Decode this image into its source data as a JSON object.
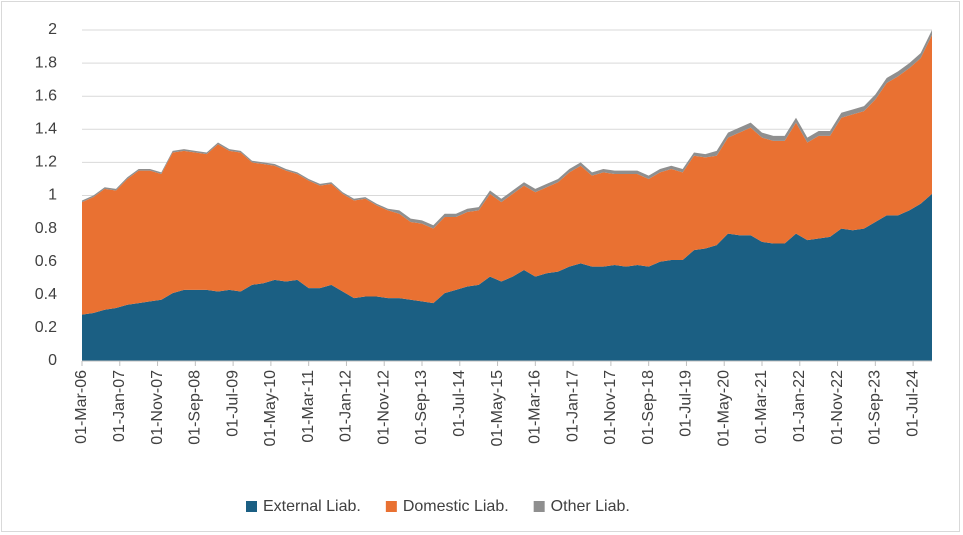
{
  "chart_data": {
    "type": "stacked_area",
    "x": [
      "2006-03",
      "2006-06",
      "2006-09",
      "2006-12",
      "2007-03",
      "2007-06",
      "2007-09",
      "2007-12",
      "2008-03",
      "2008-06",
      "2008-09",
      "2008-12",
      "2009-03",
      "2009-06",
      "2009-09",
      "2009-12",
      "2010-03",
      "2010-06",
      "2010-09",
      "2010-12",
      "2011-03",
      "2011-06",
      "2011-09",
      "2011-12",
      "2012-03",
      "2012-06",
      "2012-09",
      "2012-12",
      "2013-03",
      "2013-06",
      "2013-09",
      "2013-12",
      "2014-03",
      "2014-06",
      "2014-09",
      "2014-12",
      "2015-03",
      "2015-06",
      "2015-09",
      "2015-12",
      "2016-03",
      "2016-06",
      "2016-09",
      "2016-12",
      "2017-03",
      "2017-06",
      "2017-09",
      "2017-12",
      "2018-03",
      "2018-06",
      "2018-09",
      "2018-12",
      "2019-03",
      "2019-06",
      "2019-09",
      "2019-12",
      "2020-03",
      "2020-06",
      "2020-09",
      "2020-12",
      "2021-03",
      "2021-06",
      "2021-09",
      "2021-12",
      "2022-03",
      "2022-06",
      "2022-09",
      "2022-12",
      "2023-03",
      "2023-06",
      "2023-09",
      "2023-12",
      "2024-03",
      "2024-06",
      "2024-09",
      "2024-12"
    ],
    "series": [
      {
        "name": "External Liab.",
        "color": "#1b5f83",
        "values": [
          0.28,
          0.29,
          0.31,
          0.32,
          0.34,
          0.35,
          0.36,
          0.37,
          0.41,
          0.43,
          0.43,
          0.43,
          0.42,
          0.43,
          0.42,
          0.46,
          0.47,
          0.49,
          0.48,
          0.49,
          0.44,
          0.44,
          0.46,
          0.42,
          0.38,
          0.39,
          0.39,
          0.38,
          0.38,
          0.37,
          0.36,
          0.35,
          0.41,
          0.43,
          0.45,
          0.46,
          0.51,
          0.48,
          0.51,
          0.55,
          0.51,
          0.53,
          0.54,
          0.57,
          0.59,
          0.57,
          0.57,
          0.58,
          0.57,
          0.58,
          0.57,
          0.6,
          0.61,
          0.61,
          0.67,
          0.68,
          0.7,
          0.77,
          0.76,
          0.76,
          0.72,
          0.71,
          0.71,
          0.77,
          0.73,
          0.74,
          0.75,
          0.8,
          0.79,
          0.8,
          0.84,
          0.88,
          0.88,
          0.91,
          0.95,
          1.01
        ]
      },
      {
        "name": "Domestic Liab.",
        "color": "#e97132",
        "values": [
          0.68,
          0.7,
          0.73,
          0.71,
          0.76,
          0.8,
          0.79,
          0.76,
          0.85,
          0.84,
          0.83,
          0.82,
          0.89,
          0.84,
          0.84,
          0.74,
          0.72,
          0.69,
          0.67,
          0.64,
          0.65,
          0.62,
          0.61,
          0.59,
          0.59,
          0.59,
          0.55,
          0.53,
          0.51,
          0.47,
          0.47,
          0.45,
          0.46,
          0.44,
          0.45,
          0.45,
          0.5,
          0.48,
          0.5,
          0.51,
          0.51,
          0.52,
          0.54,
          0.57,
          0.59,
          0.55,
          0.57,
          0.55,
          0.56,
          0.55,
          0.53,
          0.54,
          0.55,
          0.53,
          0.57,
          0.55,
          0.54,
          0.58,
          0.62,
          0.65,
          0.63,
          0.62,
          0.62,
          0.67,
          0.59,
          0.62,
          0.61,
          0.67,
          0.7,
          0.71,
          0.74,
          0.8,
          0.84,
          0.86,
          0.88,
          0.96
        ]
      },
      {
        "name": "Other Liab.",
        "color": "#8f8f8f",
        "values": [
          0.01,
          0.01,
          0.01,
          0.01,
          0.01,
          0.01,
          0.01,
          0.01,
          0.01,
          0.01,
          0.01,
          0.01,
          0.01,
          0.01,
          0.01,
          0.01,
          0.01,
          0.01,
          0.01,
          0.01,
          0.01,
          0.01,
          0.01,
          0.01,
          0.01,
          0.01,
          0.01,
          0.01,
          0.02,
          0.02,
          0.02,
          0.02,
          0.02,
          0.02,
          0.02,
          0.02,
          0.02,
          0.02,
          0.02,
          0.02,
          0.02,
          0.02,
          0.02,
          0.02,
          0.02,
          0.02,
          0.02,
          0.02,
          0.02,
          0.02,
          0.02,
          0.02,
          0.02,
          0.02,
          0.02,
          0.02,
          0.03,
          0.03,
          0.03,
          0.03,
          0.03,
          0.03,
          0.03,
          0.03,
          0.03,
          0.03,
          0.03,
          0.03,
          0.03,
          0.03,
          0.03,
          0.03,
          0.03,
          0.03,
          0.03,
          0.03
        ]
      }
    ],
    "xlim": [
      "2006-03",
      "2024-12"
    ],
    "xticks": [
      {
        "value": "2006-03",
        "label": "01-Mar-06"
      },
      {
        "value": "2007-01",
        "label": "01-Jan-07"
      },
      {
        "value": "2007-11",
        "label": "01-Nov-07"
      },
      {
        "value": "2008-09",
        "label": "01-Sep-08"
      },
      {
        "value": "2009-07",
        "label": "01-Jul-09"
      },
      {
        "value": "2010-05",
        "label": "01-May-10"
      },
      {
        "value": "2011-03",
        "label": "01-Mar-11"
      },
      {
        "value": "2012-01",
        "label": "01-Jan-12"
      },
      {
        "value": "2012-11",
        "label": "01-Nov-12"
      },
      {
        "value": "2013-09",
        "label": "01-Sep-13"
      },
      {
        "value": "2014-07",
        "label": "01-Jul-14"
      },
      {
        "value": "2015-05",
        "label": "01-May-15"
      },
      {
        "value": "2016-03",
        "label": "01-Mar-16"
      },
      {
        "value": "2017-01",
        "label": "01-Jan-17"
      },
      {
        "value": "2017-11",
        "label": "01-Nov-17"
      },
      {
        "value": "2018-09",
        "label": "01-Sep-18"
      },
      {
        "value": "2019-07",
        "label": "01-Jul-19"
      },
      {
        "value": "2020-05",
        "label": "01-May-20"
      },
      {
        "value": "2021-03",
        "label": "01-Mar-21"
      },
      {
        "value": "2022-01",
        "label": "01-Jan-22"
      },
      {
        "value": "2022-11",
        "label": "01-Nov-22"
      },
      {
        "value": "2023-09",
        "label": "01-Sep-23"
      },
      {
        "value": "2024-07",
        "label": "01-Jul-24"
      }
    ],
    "ylim": [
      0,
      2
    ],
    "yticks": [
      0,
      0.2,
      0.4,
      0.6,
      0.8,
      1,
      1.2,
      1.4,
      1.6,
      1.8,
      2
    ],
    "grid": true,
    "legend": "bottom"
  }
}
